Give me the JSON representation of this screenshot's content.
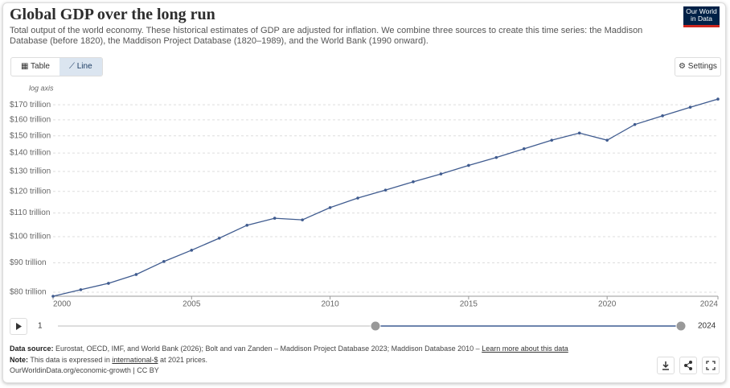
{
  "header": {
    "title": "Global GDP over the long run",
    "subtitle": "Total output of the world economy. These historical estimates of GDP are adjusted for inflation. We combine three sources to create this time series: the Maddison Database (before 1820), the Maddison Project Database (1820–1989), and the World Bank (1990 onward).",
    "logo": [
      "Our World",
      "in Data"
    ]
  },
  "controls": {
    "tabs": [
      "Table",
      "Line"
    ],
    "settings": "Settings",
    "timeline_start": "1",
    "timeline_end": "2024"
  },
  "chart_data": {
    "type": "line",
    "log_scale": true,
    "y_scale_label": "log axis",
    "grid": true,
    "color": "#3f5b8f",
    "x": [
      2000,
      2001,
      2002,
      2003,
      2004,
      2005,
      2006,
      2007,
      2008,
      2009,
      2010,
      2011,
      2012,
      2013,
      2014,
      2015,
      2016,
      2017,
      2018,
      2019,
      2020,
      2021,
      2022,
      2023,
      2024
    ],
    "values": [
      78.7,
      80.8,
      82.9,
      85.9,
      90.5,
      94.7,
      99.4,
      104.7,
      107.7,
      107.0,
      112.4,
      116.8,
      120.6,
      124.7,
      128.7,
      133.2,
      137.5,
      142.4,
      147.4,
      151.7,
      147.4,
      157.0,
      162.6,
      168.3,
      173.9
    ],
    "xlim": [
      2000,
      2024
    ],
    "xticks": [
      2000,
      2005,
      2010,
      2015,
      2020,
      2024
    ],
    "ylim": [
      78.7,
      176.8
    ],
    "yticks": [
      {
        "value": 80,
        "label": "$80 trillion"
      },
      {
        "value": 90,
        "label": "$90 trillion"
      },
      {
        "value": 100,
        "label": "$100 trillion"
      },
      {
        "value": 110,
        "label": "$110 trillion"
      },
      {
        "value": 120,
        "label": "$120 trillion"
      },
      {
        "value": 130,
        "label": "$130 trillion"
      },
      {
        "value": 140,
        "label": "$140 trillion"
      },
      {
        "value": 150,
        "label": "$150 trillion"
      },
      {
        "value": 160,
        "label": "$160 trillion"
      },
      {
        "value": 170,
        "label": "$170 trillion"
      }
    ]
  },
  "footer": {
    "source_label": "Data source:",
    "source": "Eurostat, OECD, IMF, and World Bank (2026); Bolt and van Zanden – Maddison Project Database 2023; Maddison Database 2010 –",
    "source_link": "Learn more about this data",
    "note_label": "Note:",
    "note_before": "This data is expressed in",
    "note_link": "international-$",
    "note_after": "at 2021 prices.",
    "url": "OurWorldinData.org/economic-growth | CC BY"
  }
}
